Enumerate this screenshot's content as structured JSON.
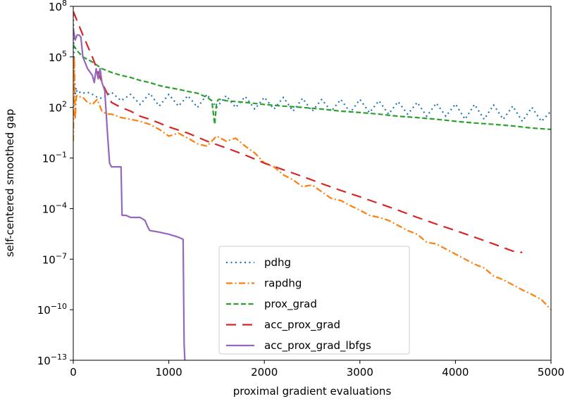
{
  "chart_data": {
    "type": "line",
    "title": "",
    "xlabel": "proximal gradient evaluations",
    "ylabel": "self-centered smoothed gap",
    "x_scale": "linear",
    "y_scale": "log",
    "xlim": [
      0,
      5000
    ],
    "ylim": [
      1e-13,
      100000000.0
    ],
    "x_ticks": [
      0,
      1000,
      2000,
      3000,
      4000,
      5000
    ],
    "x_tick_labels": [
      "0",
      "1000",
      "2000",
      "3000",
      "4000",
      "5000"
    ],
    "y_tick_exponents": [
      8,
      5,
      2,
      -1,
      -4,
      -7,
      -10,
      -13
    ],
    "y_tick_labels": [
      {
        "base": "10",
        "exp": "8"
      },
      {
        "base": "10",
        "exp": "5"
      },
      {
        "base": "10",
        "exp": "2"
      },
      {
        "base": "10",
        "exp": "−1"
      },
      {
        "base": "10",
        "exp": "−4"
      },
      {
        "base": "10",
        "exp": "−7"
      },
      {
        "base": "10",
        "exp": "−10"
      },
      {
        "base": "10",
        "exp": "−13"
      }
    ],
    "grid": false,
    "legend_position": "lower-center",
    "series": [
      {
        "name": "pdhg",
        "color": "#1f77b4",
        "style": "dotted",
        "x": [
          0,
          10,
          20,
          30,
          40,
          60,
          80,
          100,
          150,
          200,
          250,
          300,
          400,
          500,
          600,
          700,
          800,
          900,
          1000,
          1100,
          1200,
          1300,
          1400,
          1500,
          1600,
          1700,
          1800,
          1900,
          2000,
          2100,
          2200,
          2300,
          2400,
          2500,
          2600,
          2700,
          2800,
          2900,
          3000,
          3100,
          3200,
          3300,
          3400,
          3500,
          3600,
          3700,
          3800,
          3900,
          4000,
          4100,
          4200,
          4300,
          4400,
          4500,
          4600,
          4700,
          4800,
          4900,
          5000
        ],
        "y": [
          30000000,
          20000,
          500,
          1500,
          800,
          900,
          700,
          700,
          800,
          600,
          400,
          350,
          800,
          250,
          600,
          150,
          700,
          120,
          600,
          120,
          500,
          100,
          600,
          100,
          500,
          100,
          450,
          80,
          400,
          80,
          400,
          60,
          350,
          60,
          300,
          60,
          300,
          50,
          300,
          50,
          250,
          40,
          220,
          40,
          200,
          30,
          180,
          30,
          160,
          20,
          150,
          20,
          140,
          20,
          120,
          15,
          100,
          15,
          60
        ]
      },
      {
        "name": "rapdhg",
        "color": "#ff7f0e",
        "style": "dashdot",
        "x": [
          0,
          10,
          20,
          30,
          40,
          60,
          80,
          100,
          150,
          200,
          250,
          300,
          350,
          400,
          500,
          600,
          700,
          800,
          900,
          1000,
          1100,
          1200,
          1300,
          1400,
          1500,
          1600,
          1700,
          1800,
          1900,
          2000,
          2100,
          2200,
          2300,
          2400,
          2500,
          2600,
          2700,
          2800,
          2900,
          3000,
          3100,
          3200,
          3300,
          3400,
          3500,
          3600,
          3700,
          3800,
          3900,
          4000,
          4100,
          4200,
          4300,
          4400,
          4500,
          4600,
          4700,
          4800,
          4900,
          5000
        ],
        "y": [
          1,
          100000,
          20,
          400,
          500,
          400,
          450,
          400,
          200,
          150,
          300,
          60,
          40,
          40,
          25,
          20,
          15,
          10,
          5,
          2,
          3,
          1.5,
          0.7,
          0.5,
          2,
          1,
          1.5,
          0.5,
          0.2,
          0.05,
          0.03,
          0.01,
          0.005,
          0.002,
          0.0025,
          0.001,
          0.0004,
          0.0003,
          0.00015,
          8e-05,
          4e-05,
          3e-05,
          2e-05,
          1e-05,
          5e-06,
          3e-06,
          1e-06,
          8e-07,
          4e-07,
          2e-07,
          1e-07,
          5e-08,
          3e-08,
          1e-08,
          6e-09,
          3e-09,
          1.5e-09,
          8e-10,
          4e-10,
          1e-10
        ]
      },
      {
        "name": "prox_grad",
        "color": "#2ca02c",
        "style": "dashed",
        "x": [
          0,
          50,
          100,
          200,
          300,
          400,
          500,
          600,
          700,
          800,
          900,
          1000,
          1100,
          1200,
          1300,
          1400,
          1450,
          1480,
          1500,
          1520,
          1550,
          1600,
          1800,
          2000,
          2200,
          2400,
          2600,
          2800,
          3000,
          3200,
          3400,
          3600,
          3800,
          4000,
          4200,
          4400,
          4600,
          4800,
          5000
        ],
        "y": [
          500000,
          200000,
          100000,
          50000,
          20000,
          12000,
          8000,
          6000,
          4000,
          3000,
          2000,
          1500,
          1200,
          900,
          700,
          400,
          250,
          10,
          200,
          300,
          300,
          250,
          200,
          150,
          120,
          100,
          80,
          60,
          50,
          40,
          30,
          25,
          20,
          15,
          12,
          10,
          8,
          6,
          5
        ]
      },
      {
        "name": "acc_prox_grad",
        "color": "#d62728",
        "style": "longdash",
        "x": [
          0,
          100,
          200,
          300,
          400,
          500,
          600,
          700,
          800,
          900,
          1000,
          1200,
          1400,
          1600,
          1800,
          2000,
          2200,
          2400,
          2600,
          2800,
          3000,
          3200,
          3400,
          3600,
          3800,
          4000,
          4200,
          4400,
          4600,
          4700
        ],
        "y": [
          50000000,
          2000000,
          100000,
          3000,
          200,
          100,
          60,
          30,
          20,
          12,
          7,
          3,
          1,
          0.4,
          0.15,
          0.05,
          0.02,
          0.008,
          0.003,
          0.0012,
          0.0005,
          0.0002,
          8e-05,
          3e-05,
          1.2e-05,
          5e-06,
          2e-06,
          8e-07,
          3e-07,
          2.5e-07
        ]
      },
      {
        "name": "acc_prox_grad_lbfgs",
        "color": "#9467bd",
        "style": "solid",
        "x": [
          0,
          20,
          40,
          60,
          80,
          100,
          150,
          200,
          220,
          240,
          260,
          280,
          300,
          330,
          360,
          380,
          400,
          450,
          480,
          500,
          510,
          550,
          600,
          650,
          700,
          750,
          780,
          800,
          900,
          1000,
          1100,
          1150,
          1160,
          1170
        ],
        "y": [
          5000000,
          1000000,
          2000000,
          2000000,
          1500000,
          100000,
          20000,
          8000,
          3000,
          20000,
          5000,
          20000,
          3000,
          1000,
          2,
          0.05,
          0.03,
          0.03,
          0.03,
          0.03,
          4e-05,
          4e-05,
          3e-05,
          3e-05,
          3e-05,
          2e-05,
          8e-06,
          5e-06,
          4e-06,
          3e-06,
          2e-06,
          1.5e-06,
          1e-12,
          5e-14
        ]
      }
    ]
  }
}
